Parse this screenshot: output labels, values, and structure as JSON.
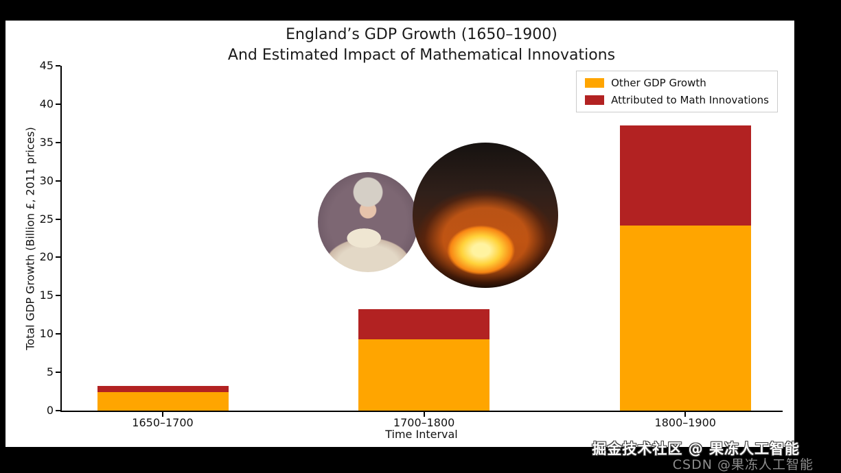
{
  "chart_data": {
    "type": "bar",
    "stacked": true,
    "title_line1": "England’s GDP Growth (1650–1900)",
    "title_line2": "And Estimated Impact of Mathematical Innovations",
    "xlabel": "Time Interval",
    "ylabel": "Total GDP Growth (Billion £, 2011 prices)",
    "categories": [
      "1650–1700",
      "1700–1800",
      "1800–1900"
    ],
    "series": [
      {
        "name": "Other GDP Growth",
        "color": "#FFA500",
        "values": [
          2.4,
          9.3,
          24.2
        ]
      },
      {
        "name": "Attributed to Math Innovations",
        "color": "#B22222",
        "values": [
          0.8,
          3.9,
          13.0
        ]
      }
    ],
    "totals": [
      3.2,
      13.2,
      37.2
    ],
    "ylim": [
      0,
      45
    ],
    "yticks": [
      0,
      5,
      10,
      15,
      20,
      25,
      30,
      35,
      40,
      45
    ],
    "legend_position": "upper right",
    "grid": false
  },
  "inset_images": [
    {
      "name": "portrait-painting",
      "description": "18th-century portrait of a woman reading a book"
    },
    {
      "name": "furnace-photo",
      "description": "glowing industrial furnace"
    }
  ],
  "watermarks": {
    "community": "掘金技术社区 @ 果冻人工智能",
    "csdn": "CSDN @果冻人工智能"
  }
}
